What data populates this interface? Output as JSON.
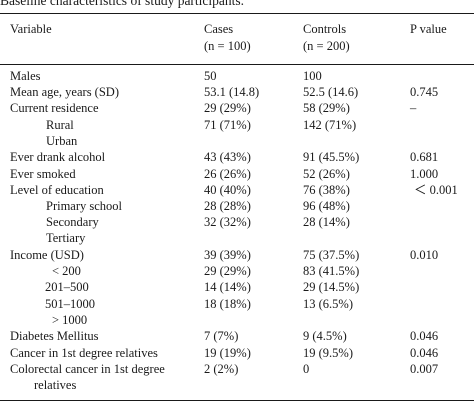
{
  "caption": "Baseline characteristics of study participants.",
  "header": {
    "variable": "Variable",
    "cases": "Cases",
    "cases_n": "(n = 100)",
    "controls": "Controls",
    "controls_n": "(n = 200)",
    "p_value": "P value"
  },
  "rows": [
    {
      "variable": "Males",
      "cases": "50",
      "controls": "100",
      "p": ""
    },
    {
      "variable": "Mean age, years (SD)",
      "cases": "53.1 (14.8)",
      "controls": "52.5 (14.6)",
      "p": "0.745"
    },
    {
      "variable": "Current residence",
      "cases": "29 (29%)",
      "controls": "58 (29%)",
      "p": "–"
    },
    {
      "variable": "Rural",
      "cases": "71 (71%)",
      "controls": "142 (71%)",
      "p": ""
    },
    {
      "variable": "Urban",
      "cases": "",
      "controls": "",
      "p": ""
    },
    {
      "variable": "Ever drank alcohol",
      "cases": "43 (43%)",
      "controls": "91 (45.5%)",
      "p": "0.681"
    },
    {
      "variable": "Ever smoked",
      "cases": "26 (26%)",
      "controls": "52 (26%)",
      "p": "1.000"
    },
    {
      "variable": "Level of education",
      "cases": "40 (40%)",
      "controls": "76 (38%)",
      "p": "＜ 0.001"
    },
    {
      "variable": "Primary school",
      "cases": "28 (28%)",
      "controls": "96 (48%)",
      "p": ""
    },
    {
      "variable": "Secondary",
      "cases": "32 (32%)",
      "controls": "28 (14%)",
      "p": ""
    },
    {
      "variable": "Tertiary",
      "cases": "",
      "controls": "",
      "p": ""
    },
    {
      "variable": "Income (USD)",
      "cases": "39 (39%)",
      "controls": "75 (37.5%)",
      "p": "0.010"
    },
    {
      "variable": "< 200",
      "cases": "29 (29%)",
      "controls": "83 (41.5%)",
      "p": ""
    },
    {
      "variable": "201–500",
      "cases": "14 (14%)",
      "controls": "29 (14.5%)",
      "p": ""
    },
    {
      "variable": "501–1000",
      "cases": "18 (18%)",
      "controls": "13 (6.5%)",
      "p": ""
    },
    {
      "variable": "> 1000",
      "cases": "",
      "controls": "",
      "p": ""
    },
    {
      "variable": "Diabetes Mellitus",
      "cases": "7 (7%)",
      "controls": "9 (4.5%)",
      "p": "0.046"
    },
    {
      "variable": "Cancer in 1st degree relatives",
      "cases": "19 (19%)",
      "controls": "19 (9.5%)",
      "p": "0.046"
    },
    {
      "variable": "Colorectal cancer in 1st degree",
      "cases": "2 (2%)",
      "controls": "0",
      "p": "0.007"
    }
  ],
  "continuation": "relatives"
}
